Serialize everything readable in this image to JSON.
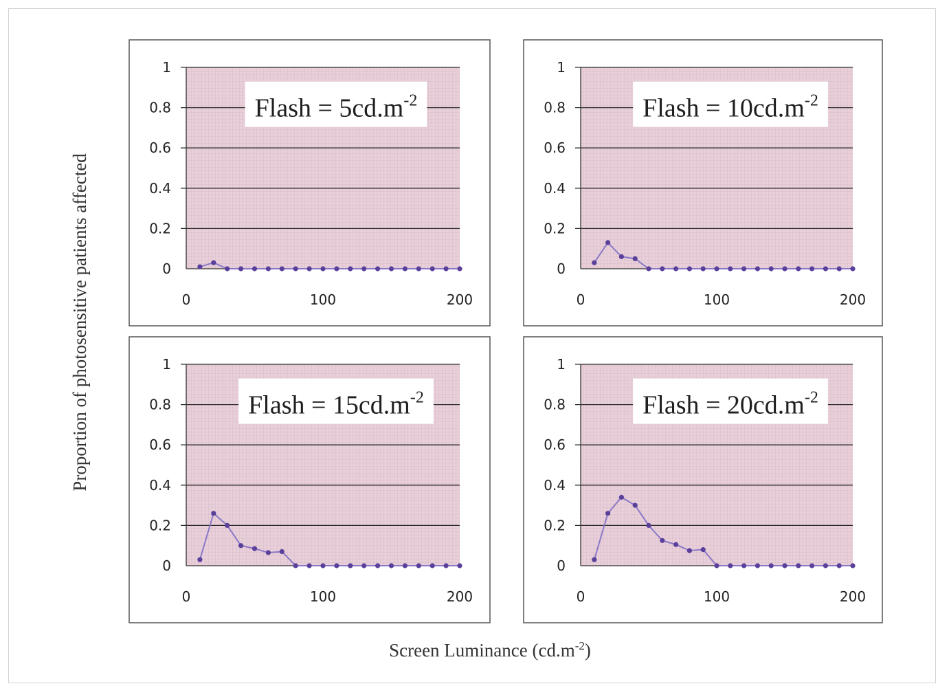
{
  "colors": {
    "plot_area": "#e9cfd9",
    "plot_grid_fine": "#d6bcc8",
    "gridline": "#2d2d2d",
    "series": "#8a78c8",
    "marker": "#5a3f9b",
    "panel_border": "#555555"
  },
  "chart_data": [
    {
      "type": "line",
      "annotation": {
        "prefix": "Flash = 5cd.m",
        "superscript": "-2"
      },
      "x": [
        10,
        20,
        30,
        40,
        50,
        60,
        70,
        80,
        90,
        100,
        110,
        120,
        130,
        140,
        150,
        160,
        170,
        180,
        190,
        200
      ],
      "series": [
        {
          "values": [
            0.01,
            0.03,
            0,
            0,
            0,
            0,
            0,
            0,
            0,
            0,
            0,
            0,
            0,
            0,
            0,
            0,
            0,
            0,
            0,
            0
          ]
        }
      ],
      "xlim": [
        0,
        200
      ],
      "ylim": [
        0,
        1
      ],
      "xticks": [
        "0",
        "100",
        "200"
      ],
      "yticks": [
        "0",
        "0.2",
        "0.4",
        "0.6",
        "0.8",
        "1"
      ],
      "grid": true
    },
    {
      "type": "line",
      "annotation": {
        "prefix": "Flash = 10cd.m",
        "superscript": "-2"
      },
      "x": [
        10,
        20,
        30,
        40,
        50,
        60,
        70,
        80,
        90,
        100,
        110,
        120,
        130,
        140,
        150,
        160,
        170,
        180,
        190,
        200
      ],
      "series": [
        {
          "values": [
            0.03,
            0.13,
            0.06,
            0.05,
            0,
            0,
            0,
            0,
            0,
            0,
            0,
            0,
            0,
            0,
            0,
            0,
            0,
            0,
            0,
            0
          ]
        }
      ],
      "xlim": [
        0,
        200
      ],
      "ylim": [
        0,
        1
      ],
      "xticks": [
        "0",
        "100",
        "200"
      ],
      "yticks": [
        "0",
        "0.2",
        "0.4",
        "0.6",
        "0.8",
        "1"
      ],
      "grid": true
    },
    {
      "type": "line",
      "annotation": {
        "prefix": "Flash = 15cd.m",
        "superscript": "-2"
      },
      "x": [
        10,
        20,
        30,
        40,
        50,
        60,
        70,
        80,
        90,
        100,
        110,
        120,
        130,
        140,
        150,
        160,
        170,
        180,
        190,
        200
      ],
      "series": [
        {
          "values": [
            0.03,
            0.26,
            0.2,
            0.1,
            0.085,
            0.065,
            0.07,
            0,
            0,
            0,
            0,
            0,
            0,
            0,
            0,
            0,
            0,
            0,
            0,
            0
          ]
        }
      ],
      "xlim": [
        0,
        200
      ],
      "ylim": [
        0,
        1
      ],
      "xticks": [
        "0",
        "100",
        "200"
      ],
      "yticks": [
        "0",
        "0.2",
        "0.4",
        "0.6",
        "0.8",
        "1"
      ],
      "grid": true
    },
    {
      "type": "line",
      "annotation": {
        "prefix": "Flash = 20cd.m",
        "superscript": "-2"
      },
      "x": [
        10,
        20,
        30,
        40,
        50,
        60,
        70,
        80,
        90,
        100,
        110,
        120,
        130,
        140,
        150,
        160,
        170,
        180,
        190,
        200
      ],
      "series": [
        {
          "values": [
            0.03,
            0.26,
            0.34,
            0.3,
            0.2,
            0.125,
            0.105,
            0.075,
            0.08,
            0,
            0,
            0,
            0,
            0,
            0,
            0,
            0,
            0,
            0,
            0
          ]
        }
      ],
      "xlim": [
        0,
        200
      ],
      "ylim": [
        0,
        1
      ],
      "xticks": [
        "0",
        "100",
        "200"
      ],
      "yticks": [
        "0",
        "0.2",
        "0.4",
        "0.6",
        "0.8",
        "1"
      ],
      "grid": true
    }
  ],
  "ylabel": "Proportion of photosensitive patients affected",
  "xlabel": {
    "prefix": "Screen Luminance (cd.m",
    "superscript": "-2",
    "suffix": ")"
  }
}
